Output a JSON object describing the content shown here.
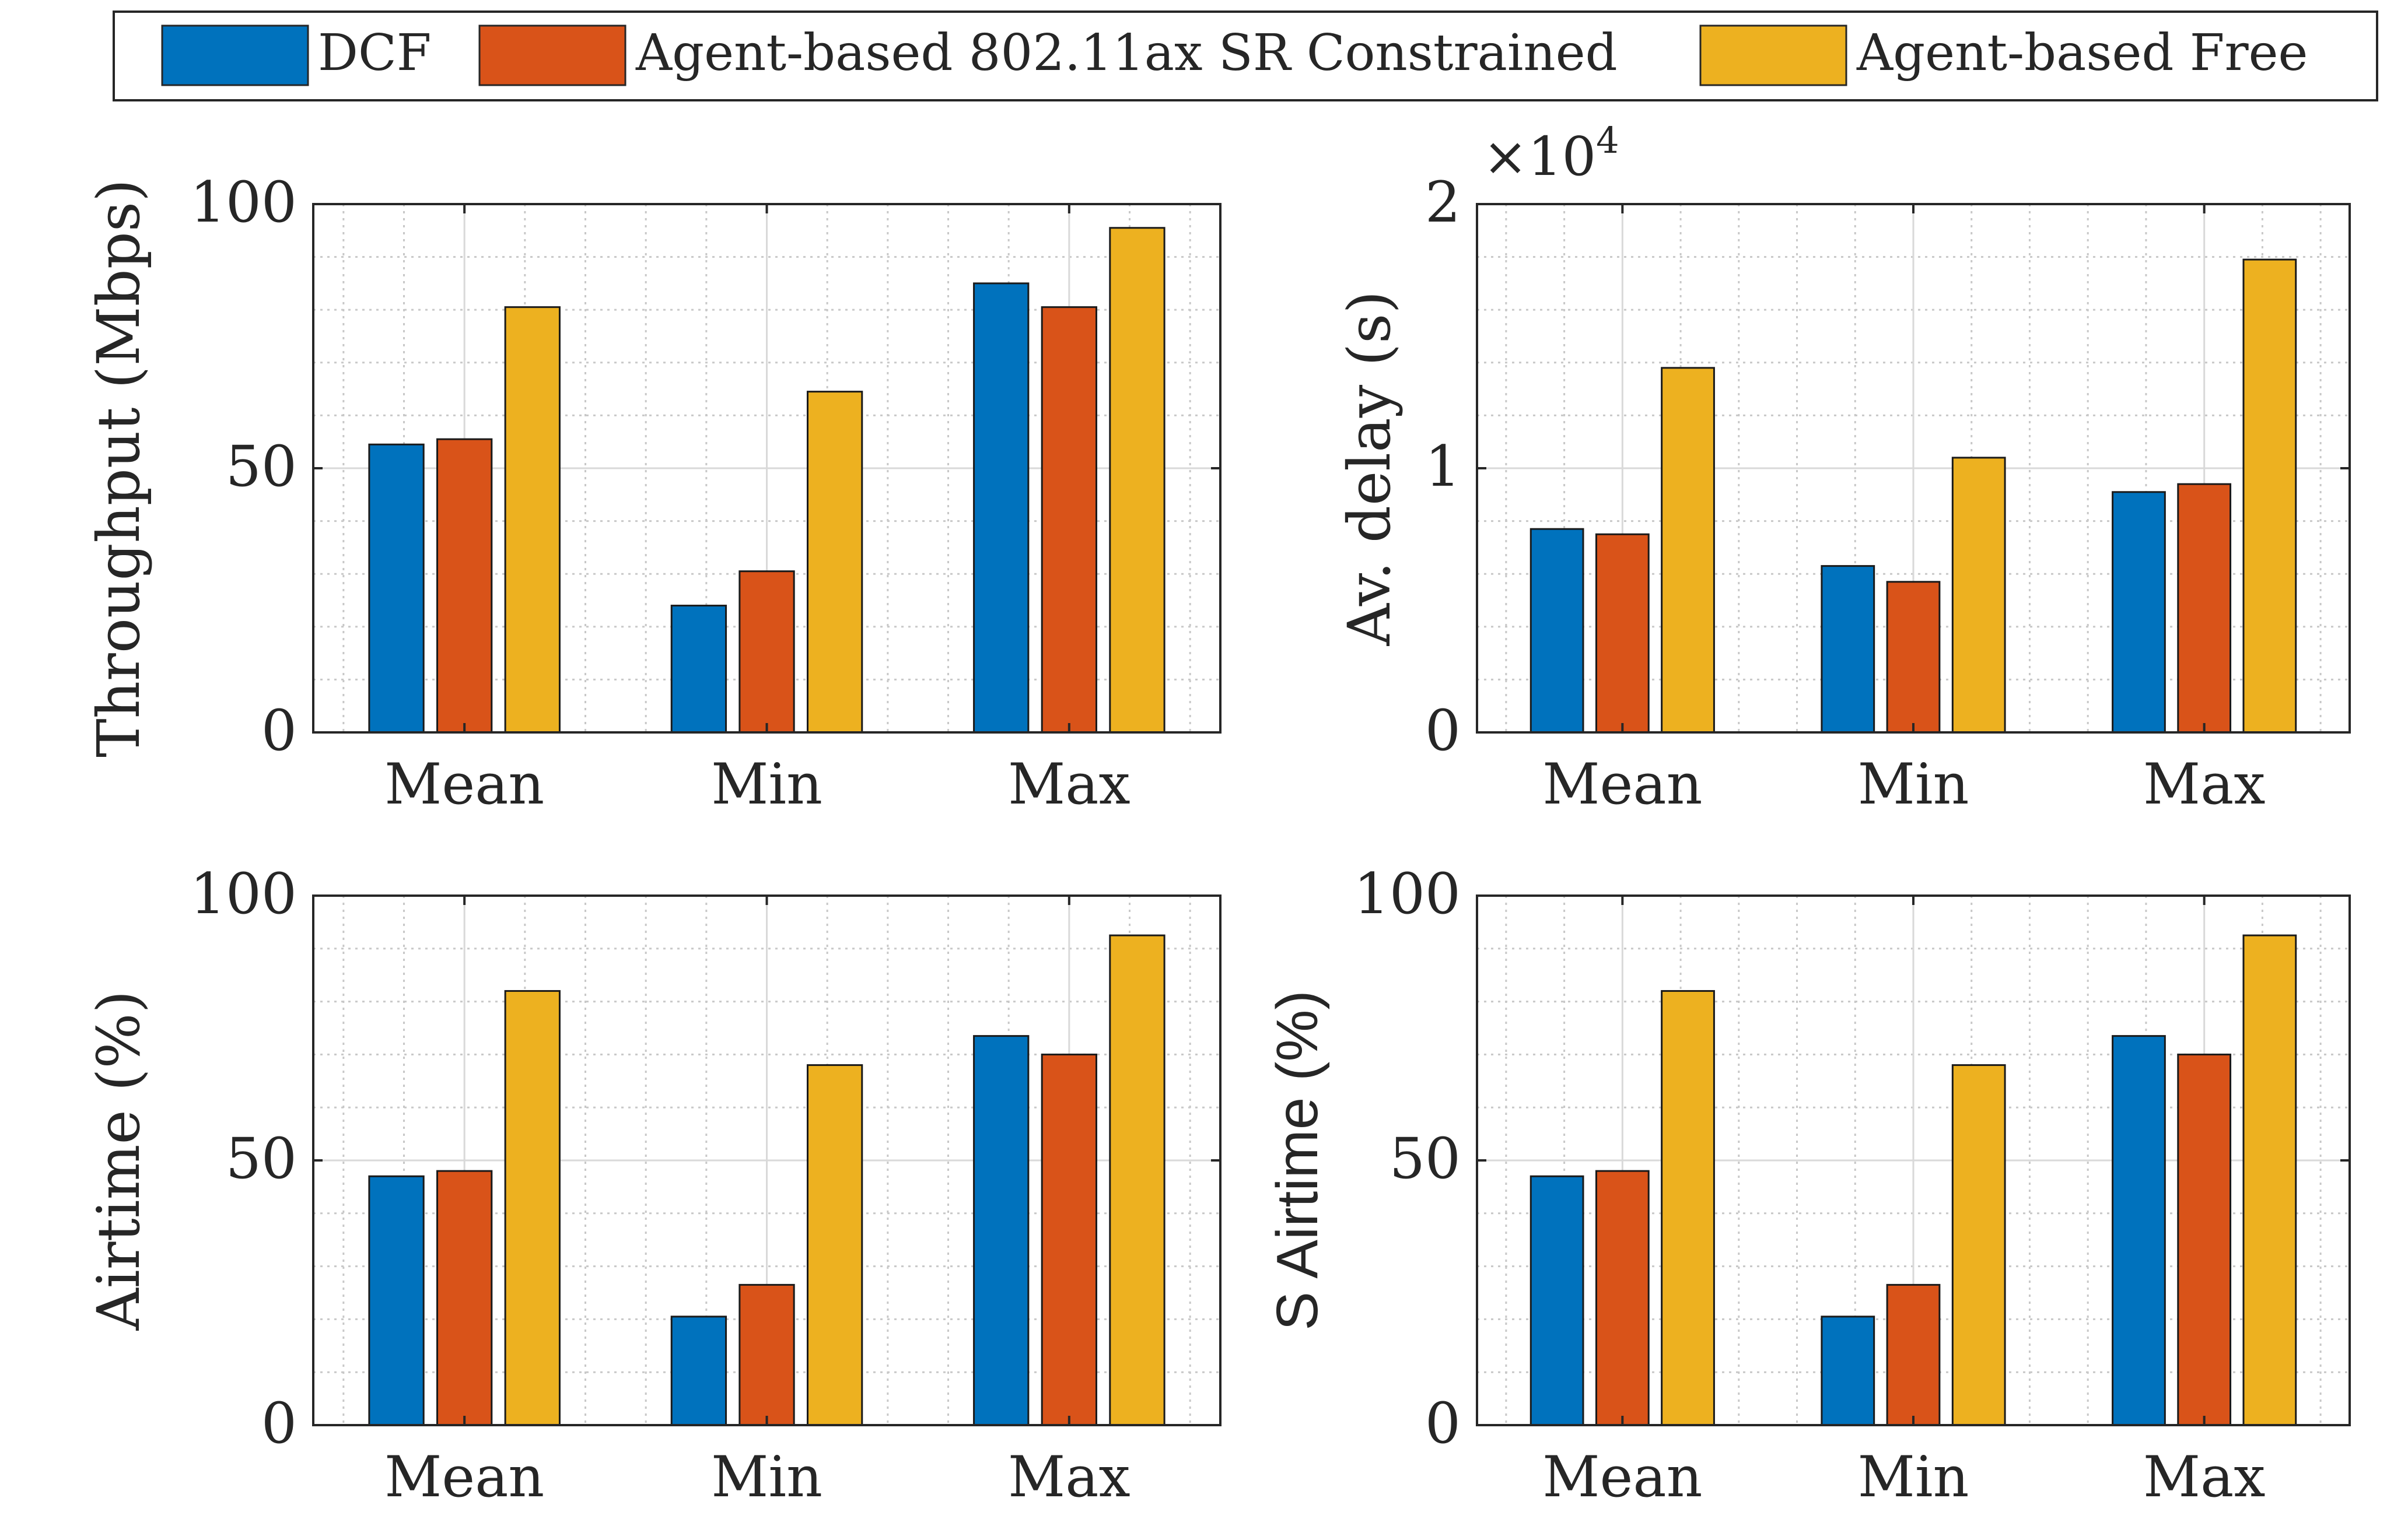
{
  "legend": {
    "placement": "top-center",
    "entries": [
      {
        "label": "DCF",
        "color": "#0072BD"
      },
      {
        "label": "Agent-based 802.11ax SR Constrained",
        "color": "#D95319"
      },
      {
        "label": "Agent-based Free",
        "color": "#EDB120"
      }
    ]
  },
  "chart_data": [
    {
      "type": "bar",
      "title": "",
      "xlabel": "",
      "ylabel": "Throughput (Mbps)",
      "categories": [
        "Mean",
        "Min",
        "Max"
      ],
      "ylim": [
        0,
        100
      ],
      "yticks": [
        0,
        50,
        100
      ],
      "ytick_labels": [
        "0",
        "50",
        "100"
      ],
      "exponent_label": "",
      "grid": true,
      "series": [
        {
          "name": "DCF",
          "values": [
            54.5,
            24,
            85
          ]
        },
        {
          "name": "Agent-based 802.11ax SR Constrained",
          "values": [
            55.5,
            30.5,
            80.5
          ]
        },
        {
          "name": "Agent-based Free",
          "values": [
            80.5,
            64.5,
            95.5
          ]
        }
      ]
    },
    {
      "type": "bar",
      "title": "",
      "xlabel": "",
      "ylabel": "Av. delay (s)",
      "categories": [
        "Mean",
        "Min",
        "Max"
      ],
      "ylim": [
        0,
        20000
      ],
      "yticks": [
        0,
        10000,
        20000
      ],
      "ytick_labels": [
        "0",
        "1",
        "2"
      ],
      "exponent_label": "×10",
      "exponent_power": "4",
      "grid": true,
      "series": [
        {
          "name": "DCF",
          "values": [
            7700,
            6300,
            9100
          ]
        },
        {
          "name": "Agent-based 802.11ax SR Constrained",
          "values": [
            7500,
            5700,
            9400
          ]
        },
        {
          "name": "Agent-based Free",
          "values": [
            13800,
            10400,
            17900
          ]
        }
      ]
    },
    {
      "type": "bar",
      "title": "",
      "xlabel": "",
      "ylabel": "Airtime (%)",
      "categories": [
        "Mean",
        "Min",
        "Max"
      ],
      "ylim": [
        0,
        100
      ],
      "yticks": [
        0,
        50,
        100
      ],
      "ytick_labels": [
        "0",
        "50",
        "100"
      ],
      "exponent_label": "",
      "grid": true,
      "series": [
        {
          "name": "DCF",
          "values": [
            47,
            20.5,
            73.5
          ]
        },
        {
          "name": "Agent-based 802.11ax SR Constrained",
          "values": [
            48,
            26.5,
            70
          ]
        },
        {
          "name": "Agent-based Free",
          "values": [
            82,
            68,
            92.5
          ]
        }
      ]
    },
    {
      "type": "bar",
      "title": "",
      "xlabel": "",
      "ylabel": "S Airtime (%)",
      "categories": [
        "Mean",
        "Min",
        "Max"
      ],
      "ylim": [
        0,
        100
      ],
      "yticks": [
        0,
        50,
        100
      ],
      "ytick_labels": [
        "0",
        "50",
        "100"
      ],
      "exponent_label": "",
      "grid": true,
      "series": [
        {
          "name": "DCF",
          "values": [
            47,
            20.5,
            73.5
          ]
        },
        {
          "name": "Agent-based 802.11ax SR Constrained",
          "values": [
            48,
            26.5,
            70
          ]
        },
        {
          "name": "Agent-based Free",
          "values": [
            82,
            68,
            92.5
          ]
        }
      ]
    }
  ]
}
